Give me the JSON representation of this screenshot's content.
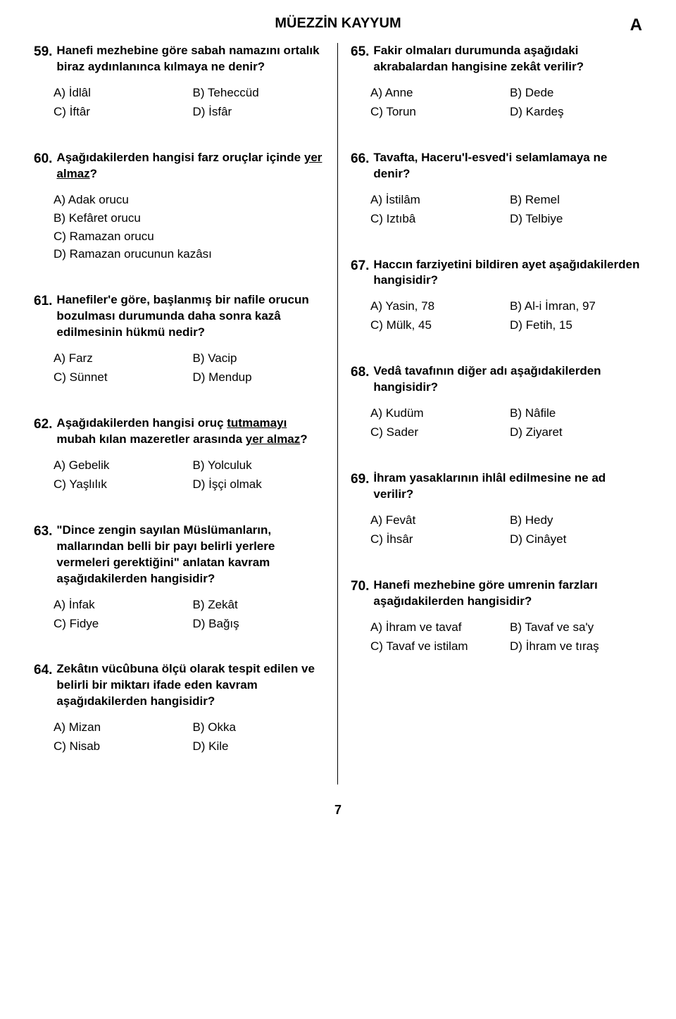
{
  "header": {
    "title": "MÜEZZİN KAYYUM",
    "booklet": "A"
  },
  "pageNumber": "7",
  "left": [
    {
      "num": "59.",
      "text": "Hanefi mezhebine göre sabah namazını ortalık biraz aydınlanınca kılmaya ne denir?",
      "optionsLayout": "grid",
      "options": [
        "A) İdlâl",
        "B) Teheccüd",
        "C) İftâr",
        "D) İsfâr"
      ]
    },
    {
      "num": "60.",
      "text": "Aşağıdakilerden hangisi farz oruçlar içinde <u>yer almaz</u>?",
      "optionsLayout": "list",
      "options": [
        "A) Adak orucu",
        "B) Kefâret orucu",
        "C) Ramazan orucu",
        "D) Ramazan orucunun kazâsı"
      ]
    },
    {
      "num": "61.",
      "text": "Hanefiler'e göre, başlanmış bir nafile orucun bozulması durumunda daha sonra kazâ edilmesinin hükmü nedir?",
      "optionsLayout": "grid",
      "options": [
        "A) Farz",
        "B) Vacip",
        "C) Sünnet",
        "D) Mendup"
      ]
    },
    {
      "num": "62.",
      "text": "Aşağıdakilerden hangisi oruç <u>tutmamayı</u> mubah kılan mazeretler arasında <u>yer almaz</u>?",
      "optionsLayout": "grid",
      "options": [
        "A) Gebelik",
        "B) Yolculuk",
        "C) Yaşlılık",
        "D) İşçi olmak"
      ]
    },
    {
      "num": "63.",
      "text": "\"Dince zengin sayılan Müslümanların, mallarından belli bir payı belirli yerlere vermeleri gerektiğini\" anlatan kavram aşağıdakilerden hangisidir?",
      "optionsLayout": "grid",
      "options": [
        "A) İnfak",
        "B) Zekât",
        "C) Fidye",
        "D) Bağış"
      ]
    },
    {
      "num": "64.",
      "text": "Zekâtın vücûbuna ölçü olarak tespit edilen ve belirli bir miktarı ifade eden kavram aşağıdakilerden hangisidir?",
      "optionsLayout": "grid",
      "options": [
        "A) Mizan",
        "B) Okka",
        "C) Nisab",
        "D) Kile"
      ]
    }
  ],
  "right": [
    {
      "num": "65.",
      "text": "Fakir olmaları durumunda aşağıdaki akrabalardan hangisine zekât verilir?",
      "optionsLayout": "grid",
      "options": [
        "A) Anne",
        "B) Dede",
        "C) Torun",
        "D) Kardeş"
      ]
    },
    {
      "num": "66.",
      "text": "Tavafta, Haceru'l-esved'i selamlamaya ne denir?",
      "optionsLayout": "grid",
      "options": [
        "A) İstilâm",
        "B) Remel",
        "C) Iztıbâ",
        "D) Telbiye"
      ]
    },
    {
      "num": "67.",
      "text": "Haccın farziyetini bildiren ayet aşağıdakilerden hangisidir?",
      "optionsLayout": "grid",
      "options": [
        "A) Yasin, 78",
        "B) Al-i İmran, 97",
        "C) Mülk, 45",
        "D) Fetih, 15"
      ]
    },
    {
      "num": "68.",
      "text": "Vedâ tavafının diğer adı aşağıdakilerden hangisidir?",
      "optionsLayout": "grid",
      "options": [
        "A) Kudüm",
        "B) Nâfile",
        "C) Sader",
        "D) Ziyaret"
      ]
    },
    {
      "num": "69.",
      "text": "İhram yasaklarının ihlâl edilmesine ne ad verilir?",
      "optionsLayout": "grid",
      "options": [
        "A) Fevât",
        "B) Hedy",
        "C) İhsâr",
        "D) Cinâyet"
      ]
    },
    {
      "num": "70.",
      "text": "Hanefi mezhebine göre umrenin farzları aşağıdakilerden hangisidir?",
      "optionsLayout": "grid",
      "options": [
        "A) İhram ve tavaf",
        "B) Tavaf ve sa'y",
        "C) Tavaf ve istilam",
        "D) İhram ve tıraş"
      ]
    }
  ]
}
